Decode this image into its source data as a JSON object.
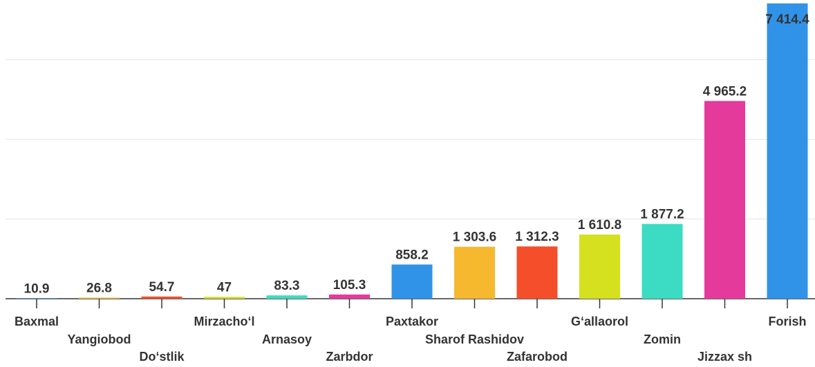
{
  "chart_data": {
    "type": "bar",
    "categories": [
      "Baxmal",
      "Yangiobod",
      "Do‘stlik",
      "Mirzacho‘l",
      "Arnasoy",
      "Zarbdor",
      "Paxtakor",
      "Sharof Rashidov",
      "Zafarobod",
      "G‘allaorol",
      "Zomin",
      "Jizzax sh",
      "Forish"
    ],
    "values": [
      10.9,
      26.8,
      54.7,
      47,
      83.3,
      105.3,
      858.2,
      1303.6,
      1312.3,
      1610.8,
      1877.2,
      4965.2,
      7414.4
    ],
    "value_labels": [
      "10.9",
      "26.8",
      "54.7",
      "47",
      "83.3",
      "105.3",
      "858.2",
      "1 303.6",
      "1 312.3",
      "1 610.8",
      "1 877.2",
      "4 965.2",
      "7 414.4"
    ],
    "colors": [
      "#3093e8",
      "#f5b82e",
      "#f44e2b",
      "#d5e01f",
      "#3bdcc3",
      "#e43a9c",
      "#3093e8",
      "#f5b82e",
      "#f44e2b",
      "#d5e01f",
      "#3bdcc3",
      "#e43a9c",
      "#3093e8"
    ],
    "ylim": [
      0,
      7500
    ],
    "gridlines": [
      2000,
      4000,
      6000
    ],
    "grid": true
  }
}
